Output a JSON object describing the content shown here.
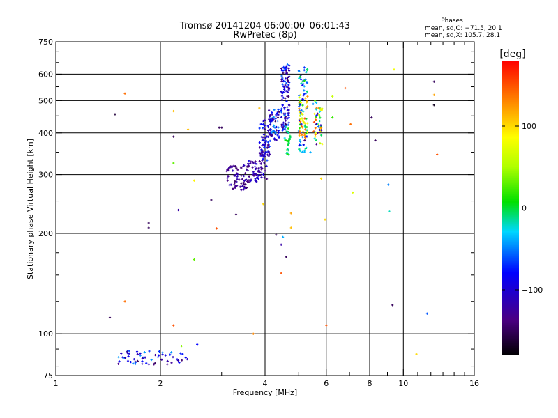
{
  "chart_data": {
    "type": "scatter",
    "title": "Tromsø 20141204 06:00:00–06:01:43",
    "subtitle": "RwPretec (8p)",
    "xlabel": "Frequency [MHz]",
    "ylabel": "Stationary phase Virtual Height [km]",
    "x_scale": "log",
    "y_scale": "log",
    "xlim": [
      1,
      16
    ],
    "ylim": [
      75,
      750
    ],
    "x_ticks": [
      1,
      2,
      4,
      6,
      8,
      10,
      16
    ],
    "x_tick_labels": [
      "1",
      "2",
      "4",
      "6",
      "8",
      "10",
      "16"
    ],
    "x_grid": [
      2,
      4,
      6,
      8,
      10
    ],
    "y_ticks": [
      75,
      100,
      200,
      300,
      400,
      500,
      600,
      750
    ],
    "y_tick_labels": [
      "75",
      "100",
      "200",
      "300",
      "400",
      "500",
      "600",
      "750"
    ],
    "y_grid": [
      100,
      200,
      300,
      400,
      500,
      600
    ],
    "grid": true,
    "stats": {
      "heading": "Phases",
      "line1": "mean, sd,O: −71.5, 20.1",
      "line2": "mean, sd,X: 105.7, 28.1"
    },
    "colorbar": {
      "label": "[deg]",
      "range": [
        -180,
        180
      ],
      "ticks": [
        100,
        0,
        -100
      ],
      "tick_labels": [
        "100",
        "0",
        "−100"
      ]
    },
    "points": [
      [
        1.48,
        455,
        -160
      ],
      [
        1.58,
        525,
        140
      ],
      [
        1.58,
        125,
        140
      ],
      [
        1.43,
        112,
        -150
      ],
      [
        1.85,
        215,
        -150
      ],
      [
        1.85,
        208,
        -150
      ],
      [
        2.18,
        465,
        110
      ],
      [
        2.18,
        390,
        -150
      ],
      [
        2.18,
        325,
        30
      ],
      [
        2.18,
        106,
        150
      ],
      [
        2.25,
        235,
        -120
      ],
      [
        2.4,
        410,
        110
      ],
      [
        2.5,
        288,
        90
      ],
      [
        2.5,
        167,
        30
      ],
      [
        2.3,
        92,
        40
      ],
      [
        2.55,
        93,
        -80
      ],
      [
        2.95,
        415,
        -150
      ],
      [
        3.0,
        415,
        -150
      ],
      [
        2.8,
        252,
        -150
      ],
      [
        2.9,
        207,
        150
      ],
      [
        3.3,
        228,
        -150
      ],
      [
        3.85,
        475,
        110
      ],
      [
        3.95,
        245,
        100
      ],
      [
        3.7,
        100,
        130
      ],
      [
        4.3,
        198,
        -150
      ],
      [
        4.45,
        185,
        -120
      ],
      [
        4.5,
        195,
        -40
      ],
      [
        4.6,
        170,
        -150
      ],
      [
        4.45,
        152,
        150
      ],
      [
        4.75,
        230,
        120
      ],
      [
        4.75,
        208,
        110
      ],
      [
        5.2,
        380,
        -140
      ],
      [
        5.4,
        350,
        -40
      ],
      [
        5.8,
        292,
        100
      ],
      [
        5.95,
        220,
        100
      ],
      [
        6.0,
        106,
        150
      ],
      [
        6.25,
        515,
        60
      ],
      [
        6.25,
        445,
        20
      ],
      [
        6.8,
        545,
        150
      ],
      [
        7.05,
        425,
        140
      ],
      [
        7.15,
        265,
        70
      ],
      [
        8.1,
        445,
        -150
      ],
      [
        8.3,
        380,
        -150
      ],
      [
        9.05,
        280,
        -50
      ],
      [
        9.1,
        233,
        -20
      ],
      [
        9.3,
        122,
        -150
      ],
      [
        9.4,
        620,
        80
      ],
      [
        10.9,
        87,
        100
      ],
      [
        11.7,
        115,
        -60
      ],
      [
        12.25,
        570,
        -150
      ],
      [
        12.25,
        520,
        120
      ],
      [
        12.25,
        485,
        -170
      ],
      [
        12.5,
        345,
        150
      ]
    ],
    "clusters": [
      {
        "x": [
          1.5,
          2.4
        ],
        "y": [
          81,
          89
        ],
        "n": 60,
        "phase": [
          -150,
          -40
        ]
      },
      {
        "x": [
          3.1,
          3.55
        ],
        "y": [
          270,
          320
        ],
        "n": 70,
        "phase": [
          -150,
          -110
        ]
      },
      {
        "x": [
          3.55,
          4.05
        ],
        "y": [
          285,
          330
        ],
        "n": 60,
        "phase": [
          -140,
          -90
        ]
      },
      {
        "x": [
          3.85,
          4.15
        ],
        "y": [
          330,
          440
        ],
        "n": 80,
        "phase": [
          -140,
          -60
        ]
      },
      {
        "x": [
          4.1,
          4.4
        ],
        "y": [
          380,
          470
        ],
        "n": 60,
        "phase": [
          -150,
          -40
        ]
      },
      {
        "x": [
          4.45,
          4.7
        ],
        "y": [
          400,
          650
        ],
        "n": 110,
        "phase": [
          -150,
          -50
        ]
      },
      {
        "x": [
          4.55,
          4.75
        ],
        "y": [
          340,
          420
        ],
        "n": 25,
        "phase": [
          -30,
          20
        ]
      },
      {
        "x": [
          5.0,
          5.3
        ],
        "y": [
          350,
          640
        ],
        "n": 80,
        "phase": [
          -100,
          20
        ]
      },
      {
        "x": [
          5.0,
          5.3
        ],
        "y": [
          380,
          520
        ],
        "n": 40,
        "phase": [
          60,
          150
        ]
      },
      {
        "x": [
          5.5,
          5.85
        ],
        "y": [
          370,
          500
        ],
        "n": 50,
        "phase": [
          -140,
          160
        ]
      }
    ]
  }
}
